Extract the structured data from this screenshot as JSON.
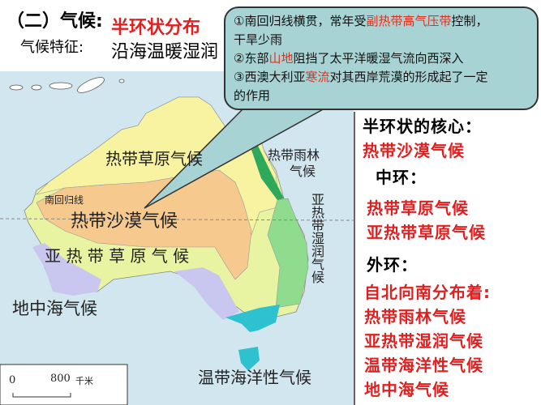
{
  "header": {
    "section_title": "（二）气候:",
    "distribution": "半环状分布",
    "feature_label": "气候特征:",
    "feature_text": "沿海温暖湿润"
  },
  "callout": {
    "line1_pre": "①南回归线横贯，常年受",
    "line1_hl": "副热带高气压带",
    "line1_post": "控制，",
    "line2": "干旱少雨",
    "line3_pre": "②东部",
    "line3_hl": "山地",
    "line3_post": "阻挡了太平洋暖湿气流向西深入",
    "line4_pre": "③西澳大利亚",
    "line4_hl": "寒流",
    "line4_post": "对其西岸荒漠的形成起了一定",
    "line5": "的作用"
  },
  "map": {
    "labels": {
      "tropical_savanna": "热带草原气候",
      "rainforest_1": "热带雨林",
      "rainforest_2": "气候",
      "tropic": "南回归线",
      "desert": "热带沙漠气候",
      "subtropical_savanna": "亚 热 带 草 原 气 候",
      "humid_subtropical": "亚热带湿润气候",
      "mediterranean": "地中海气候",
      "oceanic": "温带海洋性气候"
    },
    "scale": {
      "zero": "0",
      "distance": "800",
      "unit": "千米"
    },
    "colors": {
      "sea": "#d2e6ef",
      "tropical_savanna": "#f7f3a0",
      "subtropical_savanna": "#e9f4a2",
      "desert": "#f6c98f",
      "rainforest": "#2ea85a",
      "humid_subtropical": "#8fdc8e",
      "mediterranean": "#c9c6f0",
      "oceanic": "#2ec2d0"
    }
  },
  "right_panel": {
    "core_label": "半环状的核心：",
    "core_value": "热带沙漠气候",
    "middle_label": "中环：",
    "middle_values": [
      "热带草原气候",
      "亚热带草原气候"
    ],
    "outer_label": "外环：",
    "outer_intro": "自北向南分布着:",
    "outer_values": [
      "热带雨林气候",
      "亚热带湿润气候",
      "温带海洋性气候",
      "地中海气候"
    ]
  }
}
